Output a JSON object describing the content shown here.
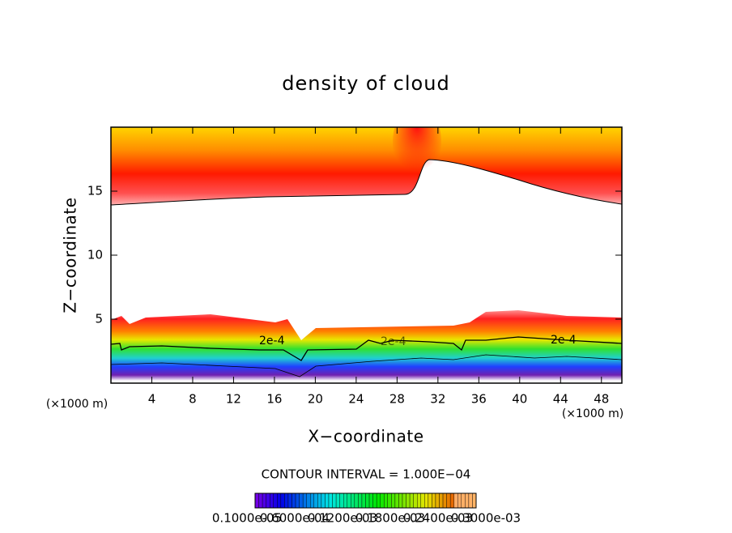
{
  "chart_data": {
    "type": "contour",
    "title": "density of cloud",
    "xlabel": "X−coordinate",
    "ylabel": "Z−coordinate",
    "axis_units": [
      "(×1000 m)",
      "(×1000 m)"
    ],
    "xlim": [
      0,
      50
    ],
    "ylim": [
      0,
      20
    ],
    "xticks": [
      4,
      8,
      12,
      16,
      20,
      24,
      28,
      32,
      36,
      40,
      44,
      48
    ],
    "yticks": [
      5,
      10,
      15
    ],
    "contour_labels": [
      "2e-4",
      "2e-4",
      "2e-4"
    ],
    "contour_interval": "CONTOUR INTERVAL = 1.000E−04",
    "colorbar_labels": [
      "0.1000e-05",
      "0.6000e-04",
      "0.1200e-03",
      "0.1800e-03",
      "0.2400e-03",
      "0.3000e-03"
    ]
  }
}
